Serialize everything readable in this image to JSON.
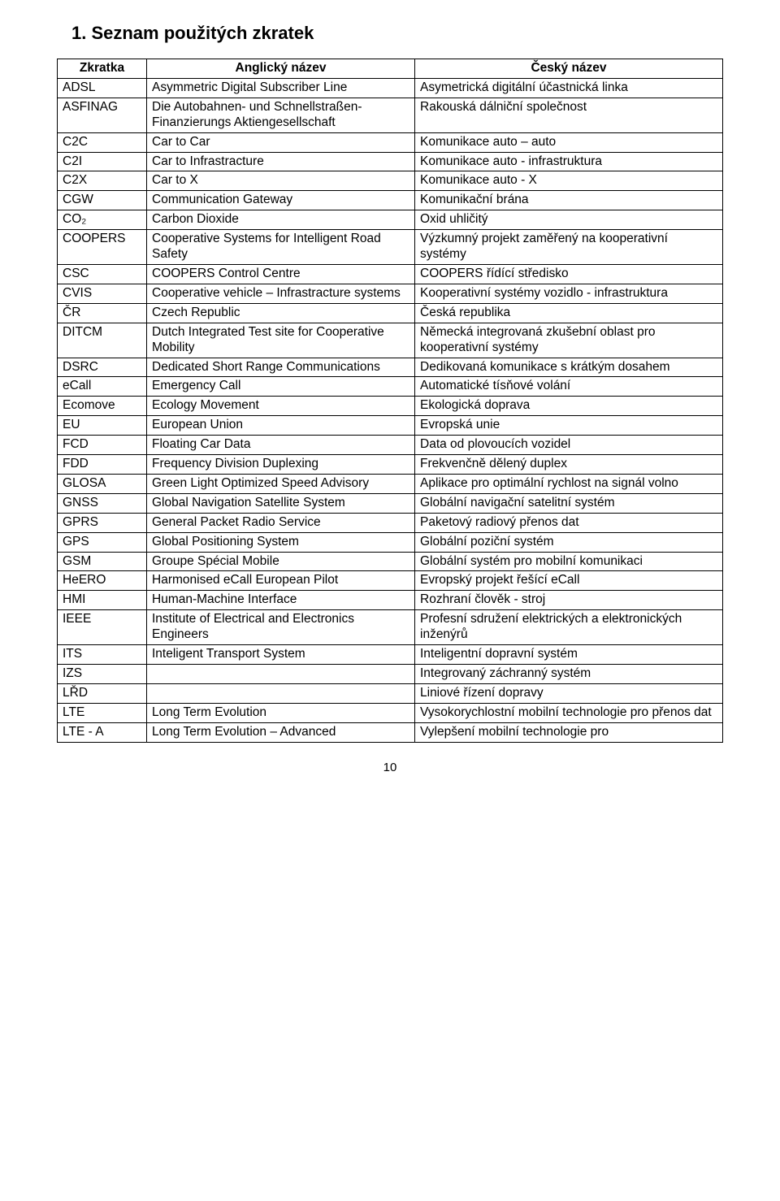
{
  "title": "1. Seznam použitých zkratek",
  "page_number": "10",
  "columns": [
    "Zkratka",
    "Anglický název",
    "Český název"
  ],
  "rows": [
    [
      "ADSL",
      "Asymmetric Digital Subscriber Line",
      "Asymetrická digitální účastnická linka"
    ],
    [
      "ASFINAG",
      "Die Autobahnen- und Schnellstraßen-Finanzierungs Aktiengesellschaft",
      "Rakouská dálniční společnost"
    ],
    [
      "C2C",
      "Car to Car",
      "Komunikace auto – auto"
    ],
    [
      "C2I",
      "Car to Infrastracture",
      "Komunikace auto - infrastruktura"
    ],
    [
      "C2X",
      "Car to X",
      "Komunikace auto - X"
    ],
    [
      "CGW",
      "Communication Gateway",
      "Komunikační brána"
    ],
    [
      "CO₂",
      "Carbon Dioxide",
      "Oxid uhličitý"
    ],
    [
      "COOPERS",
      "Cooperative Systems for Intelligent Road Safety",
      "Výzkumný projekt zaměřený na kooperativní systémy"
    ],
    [
      "CSC",
      "COOPERS Control Centre",
      "COOPERS řídící středisko"
    ],
    [
      "CVIS",
      "Cooperative vehicle – Infrastracture systems",
      "Kooperativní systémy vozidlo - infrastruktura"
    ],
    [
      "ČR",
      "Czech Republic",
      "Česká republika"
    ],
    [
      "DITCM",
      "Dutch Integrated Test site for Cooperative Mobility",
      "Německá integrovaná zkušební oblast pro kooperativní systémy"
    ],
    [
      "DSRC",
      "Dedicated Short Range Communications",
      "Dedikovaná komunikace s krátkým dosahem"
    ],
    [
      "eCall",
      "Emergency Call",
      "Automatické tísňové volání"
    ],
    [
      "Ecomove",
      "Ecology Movement",
      "Ekologická doprava"
    ],
    [
      "EU",
      "European Union",
      "Evropská unie"
    ],
    [
      "FCD",
      "Floating Car Data",
      "Data od plovoucích vozidel"
    ],
    [
      "FDD",
      "Frequency Division Duplexing",
      "Frekvenčně dělený duplex"
    ],
    [
      "GLOSA",
      "Green Light Optimized Speed Advisory",
      "Aplikace pro optimální rychlost na signál volno"
    ],
    [
      "GNSS",
      "Global Navigation Satellite System",
      "Globální navigační satelitní systém"
    ],
    [
      "GPRS",
      "General Packet Radio Service",
      "Paketový radiový přenos dat"
    ],
    [
      "GPS",
      "Global Positioning System",
      "Globální poziční systém"
    ],
    [
      "GSM",
      "Groupe Spécial Mobile",
      "Globální systém pro mobilní komunikaci"
    ],
    [
      "HeERO",
      "Harmonised eCall European Pilot",
      "Evropský projekt řešící eCall"
    ],
    [
      "HMI",
      "Human-Machine Interface",
      "Rozhraní člověk - stroj"
    ],
    [
      "IEEE",
      "Institute of Electrical and Electronics Engineers",
      "Profesní sdružení elektrických a elektronických inženýrů"
    ],
    [
      "ITS",
      "Inteligent Transport System",
      "Inteligentní dopravní systém"
    ],
    [
      "IZS",
      "",
      "Integrovaný záchranný systém"
    ],
    [
      "LŘD",
      "",
      "Liniové řízení dopravy"
    ],
    [
      "LTE",
      "Long Term Evolution",
      "Vysokorychlostní mobilní technologie pro přenos dat"
    ],
    [
      "LTE - A",
      "Long Term Evolution – Advanced",
      "Vylepšení mobilní technologie pro"
    ]
  ]
}
